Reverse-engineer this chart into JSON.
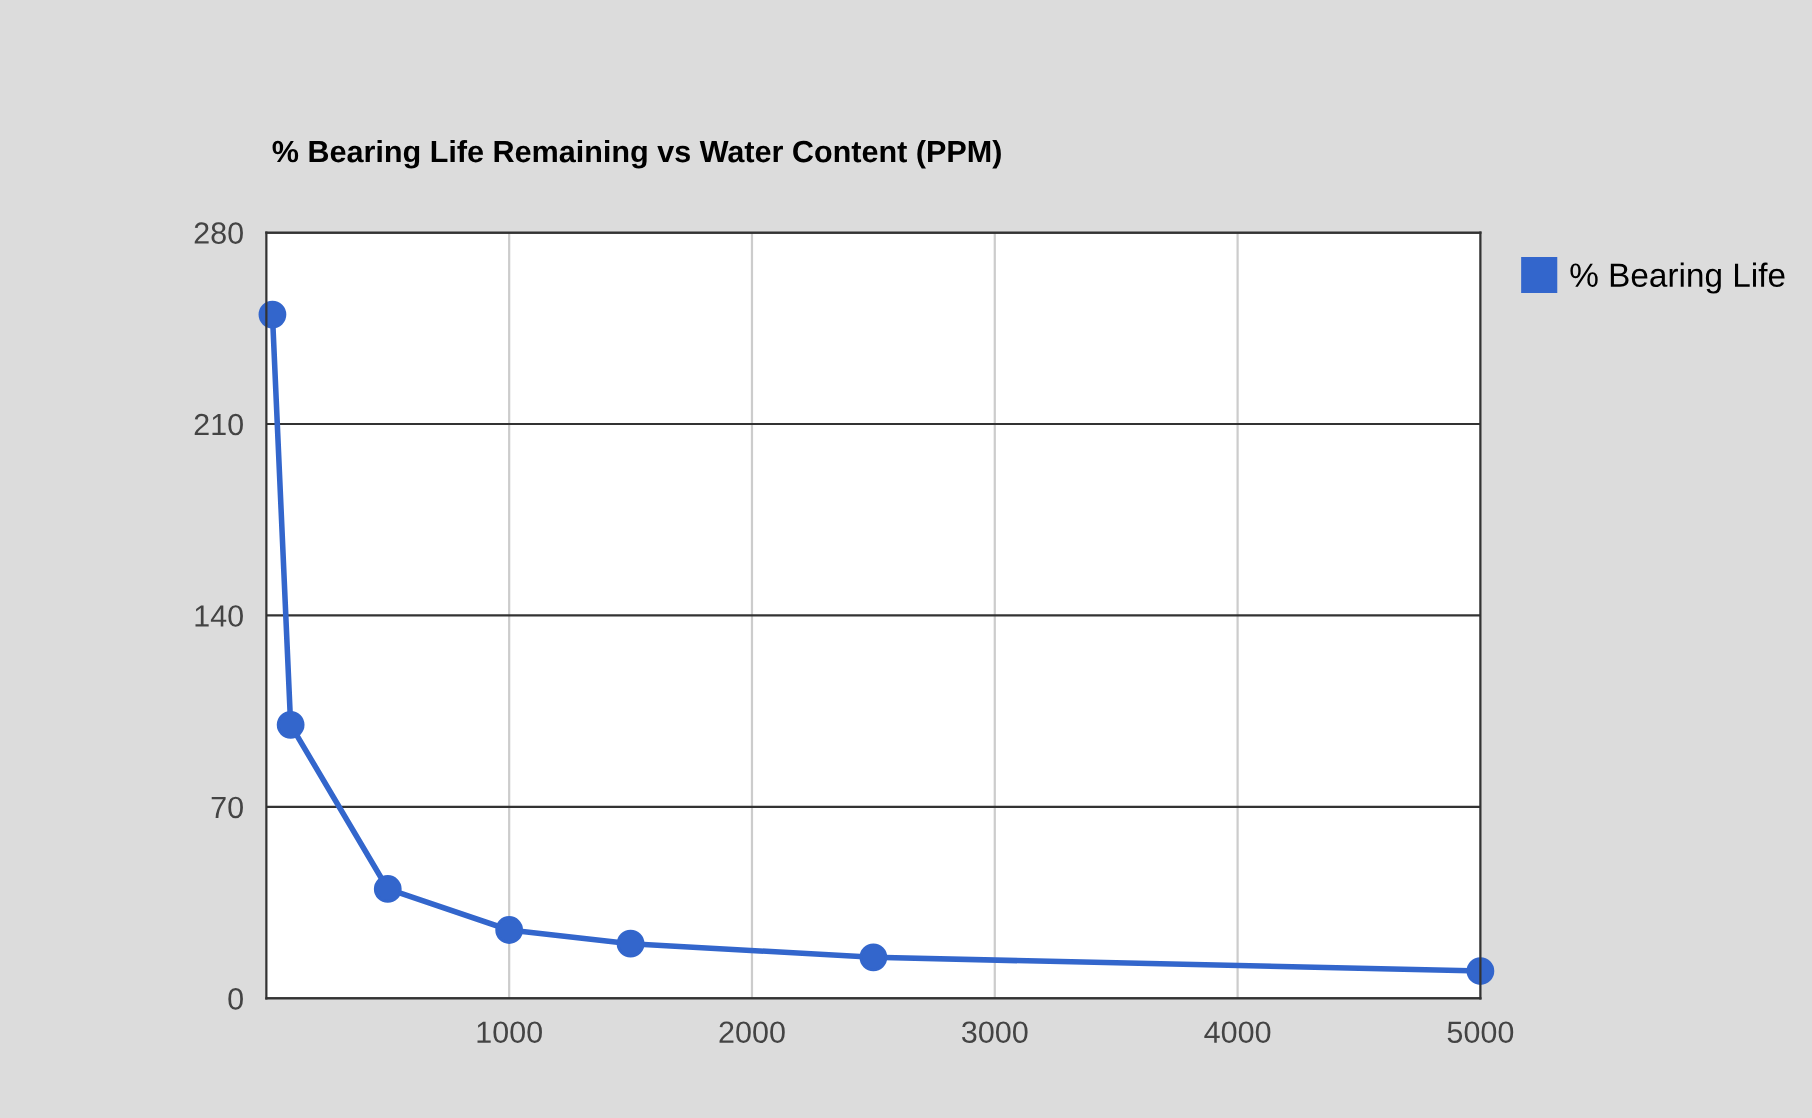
{
  "chart_data": {
    "type": "line",
    "title": "% Bearing Life Remaining vs Water Content (PPM)",
    "x": [
      25,
      100,
      500,
      1000,
      1500,
      2500,
      5000
    ],
    "series": [
      {
        "name": "% Bearing Life",
        "color": "#3366cc",
        "values": [
          250,
          100,
          40,
          25,
          20,
          15,
          10
        ]
      }
    ],
    "xlim": [
      0,
      5000
    ],
    "xticks": [
      1000,
      2000,
      3000,
      4000,
      5000
    ],
    "ylim": [
      0,
      280
    ],
    "yticks": [
      0,
      70,
      140,
      210,
      280
    ],
    "grid": true,
    "legend": "right",
    "marker": "circle",
    "line_style": "solid"
  }
}
